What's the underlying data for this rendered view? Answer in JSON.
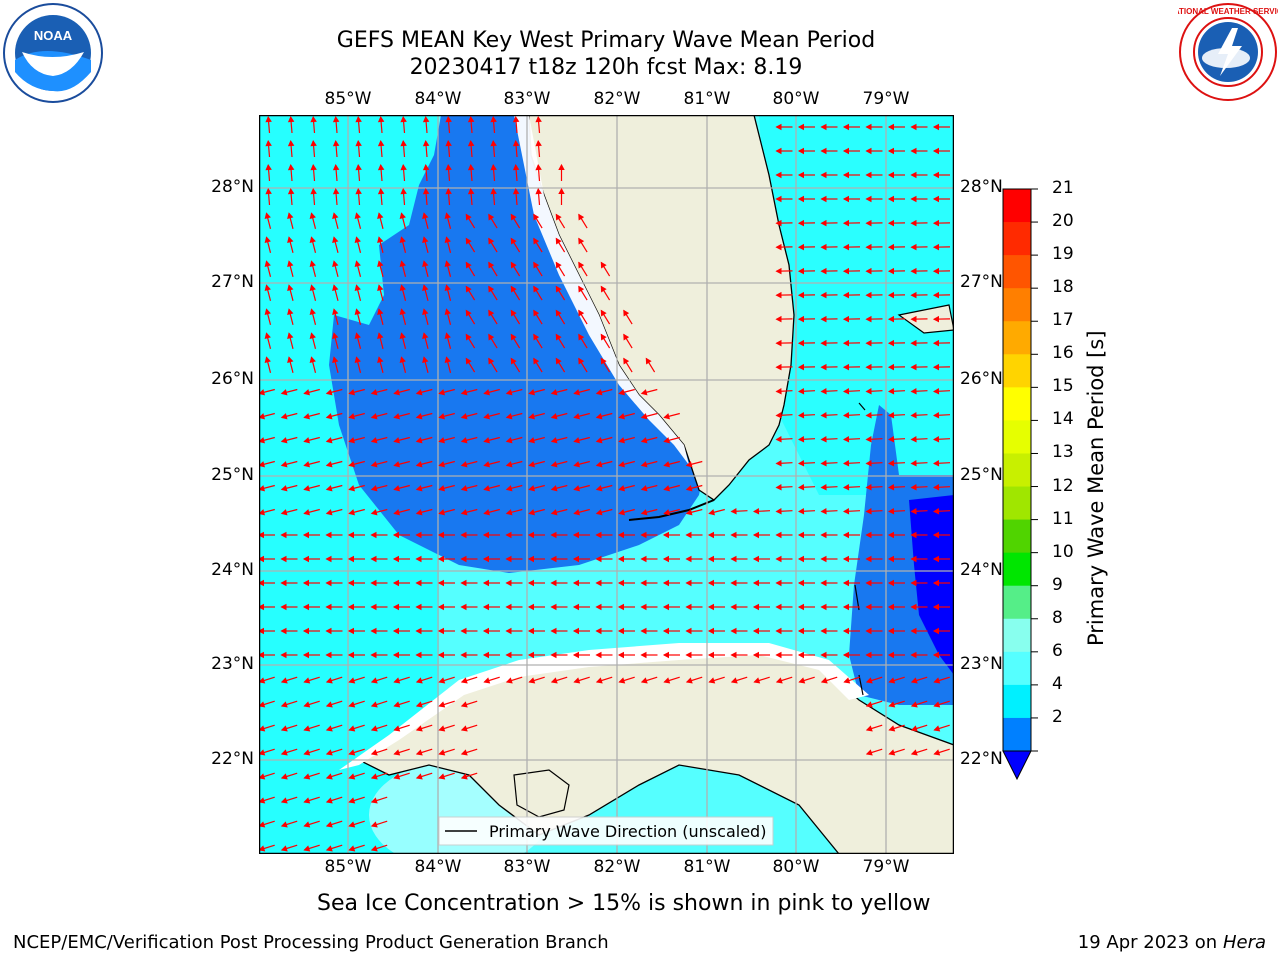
{
  "title_line1": "GEFS MEAN Key West Primary Wave Mean Period",
  "title_line2": "20230417 t18z 120h fcst   Max: 8.19",
  "lon_labels": [
    "85°W",
    "84°W",
    "83°W",
    "82°W",
    "81°W",
    "80°W",
    "79°W"
  ],
  "lat_labels": [
    "28°N",
    "27°N",
    "26°N",
    "25°N",
    "24°N",
    "23°N",
    "22°N"
  ],
  "colorbar": {
    "label": "Primary Wave Mean Period [s]",
    "ticks": [
      "21",
      "20",
      "19",
      "18",
      "17",
      "16",
      "15",
      "14",
      "13",
      "12",
      "11",
      "10",
      "9",
      "8",
      "6",
      "4",
      "2"
    ],
    "colors": [
      "#ff0000",
      "#ff2a00",
      "#ff5500",
      "#ff7f00",
      "#ffaa00",
      "#ffd400",
      "#ffff00",
      "#e6ff00",
      "#c8f000",
      "#a0e600",
      "#50d400",
      "#00e600",
      "#55ee88",
      "#88ffee",
      "#55ffff",
      "#00f0ff",
      "#0080ff"
    ],
    "under_color": "#0000ff"
  },
  "map_colors": {
    "cyan_light": "#55ffff",
    "cyan": "#00ffff",
    "blue": "#1878f0",
    "deep_blue": "#0000ff",
    "pale": "#c8ffff",
    "land": "#efefdc",
    "arrow": "#ff0000",
    "grid": "#b0b0b0"
  },
  "legend_text": "Primary Wave Direction (unscaled)",
  "note": "Sea Ice Concentration > 15% is shown in pink to yellow",
  "footer_left": "NCEP/EMC/Verification Post Processing Product Generation Branch",
  "footer_date": "19 Apr 2023 on ",
  "footer_host": "Hera",
  "logo_left_text": "NOAA",
  "logo_left_ring": "NATIONAL OCEANIC AND ATMOSPHERIC ADMINISTRATION · U.S. DEPARTMENT OF COMMERCE",
  "logo_right_ring": "NATIONAL WEATHER SERVICE"
}
